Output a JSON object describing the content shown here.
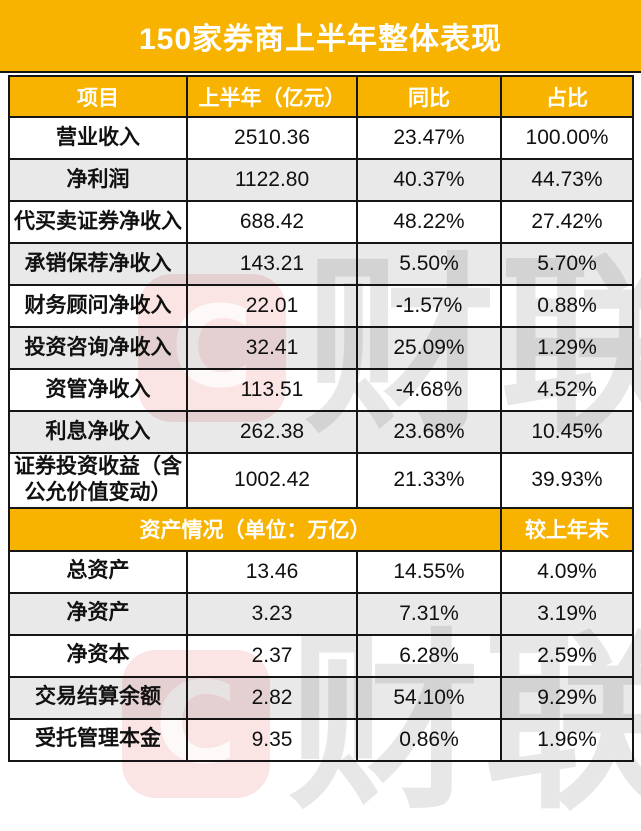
{
  "title": "150家券商上半年整体表现",
  "table1": {
    "headers": [
      "项目",
      "上半年（亿元）",
      "同比",
      "占比"
    ],
    "rows": [
      [
        "营业收入",
        "2510.36",
        "23.47%",
        "100.00%"
      ],
      [
        "净利润",
        "1122.80",
        "40.37%",
        "44.73%"
      ],
      [
        "代买卖证券净收入",
        "688.42",
        "48.22%",
        "27.42%"
      ],
      [
        "承销保荐净收入",
        "143.21",
        "5.50%",
        "5.70%"
      ],
      [
        "财务顾问净收入",
        "22.01",
        "-1.57%",
        "0.88%"
      ],
      [
        "投资咨询净收入",
        "32.41",
        "25.09%",
        "1.29%"
      ],
      [
        "资管净收入",
        "113.51",
        "-4.68%",
        "4.52%"
      ],
      [
        "利息净收入",
        "262.38",
        "23.68%",
        "10.45%"
      ],
      [
        "证券投资收益（含公允价值变动）",
        "1002.42",
        "21.33%",
        "39.93%"
      ]
    ]
  },
  "table2": {
    "section_header": "资产情况（单位：万亿）",
    "last_col_header": "较上年末",
    "rows": [
      [
        "总资产",
        "13.46",
        "14.55%",
        "4.09%"
      ],
      [
        "净资产",
        "3.23",
        "7.31%",
        "3.19%"
      ],
      [
        "净资本",
        "2.37",
        "6.28%",
        "2.59%"
      ],
      [
        "交易结算余额",
        "2.82",
        "54.10%",
        "9.29%"
      ],
      [
        "受托管理本金",
        "9.35",
        "0.86%",
        "1.96%"
      ]
    ]
  },
  "watermark": {
    "logo_letter": "C",
    "text": "财联社"
  },
  "colors": {
    "accent_orange": "#F8B301",
    "row_alt_gray": "#E9E9E9",
    "grid_black": "#161616",
    "header_text_white": "#FFFFFF",
    "watermark_red": "#DF5656",
    "watermark_gray": "#BFBFBF"
  },
  "chart_data": [
    {
      "type": "table",
      "title": "150家券商上半年整体表现",
      "columns": [
        "项目",
        "上半年（亿元）",
        "同比",
        "占比"
      ],
      "rows": [
        [
          "营业收入",
          2510.36,
          "23.47%",
          "100.00%"
        ],
        [
          "净利润",
          1122.8,
          "40.37%",
          "44.73%"
        ],
        [
          "代买卖证券净收入",
          688.42,
          "48.22%",
          "27.42%"
        ],
        [
          "承销保荐净收入",
          143.21,
          "5.50%",
          "5.70%"
        ],
        [
          "财务顾问净收入",
          22.01,
          "-1.57%",
          "0.88%"
        ],
        [
          "投资咨询净收入",
          32.41,
          "25.09%",
          "1.29%"
        ],
        [
          "资管净收入",
          113.51,
          "-4.68%",
          "4.52%"
        ],
        [
          "利息净收入",
          262.38,
          "23.68%",
          "10.45%"
        ],
        [
          "证券投资收益（含公允价值变动）",
          1002.42,
          "21.33%",
          "39.93%"
        ]
      ]
    },
    {
      "type": "table",
      "title": "资产情况（单位：万亿）",
      "columns": [
        "资产情况（单位：万亿）",
        "较上年末"
      ],
      "rows": [
        [
          "总资产",
          13.46,
          "14.55%",
          "4.09%"
        ],
        [
          "净资产",
          3.23,
          "7.31%",
          "3.19%"
        ],
        [
          "净资本",
          2.37,
          "6.28%",
          "2.59%"
        ],
        [
          "交易结算余额",
          2.82,
          "54.10%",
          "9.29%"
        ],
        [
          "受托管理本金",
          9.35,
          "0.86%",
          "1.96%"
        ]
      ]
    }
  ]
}
